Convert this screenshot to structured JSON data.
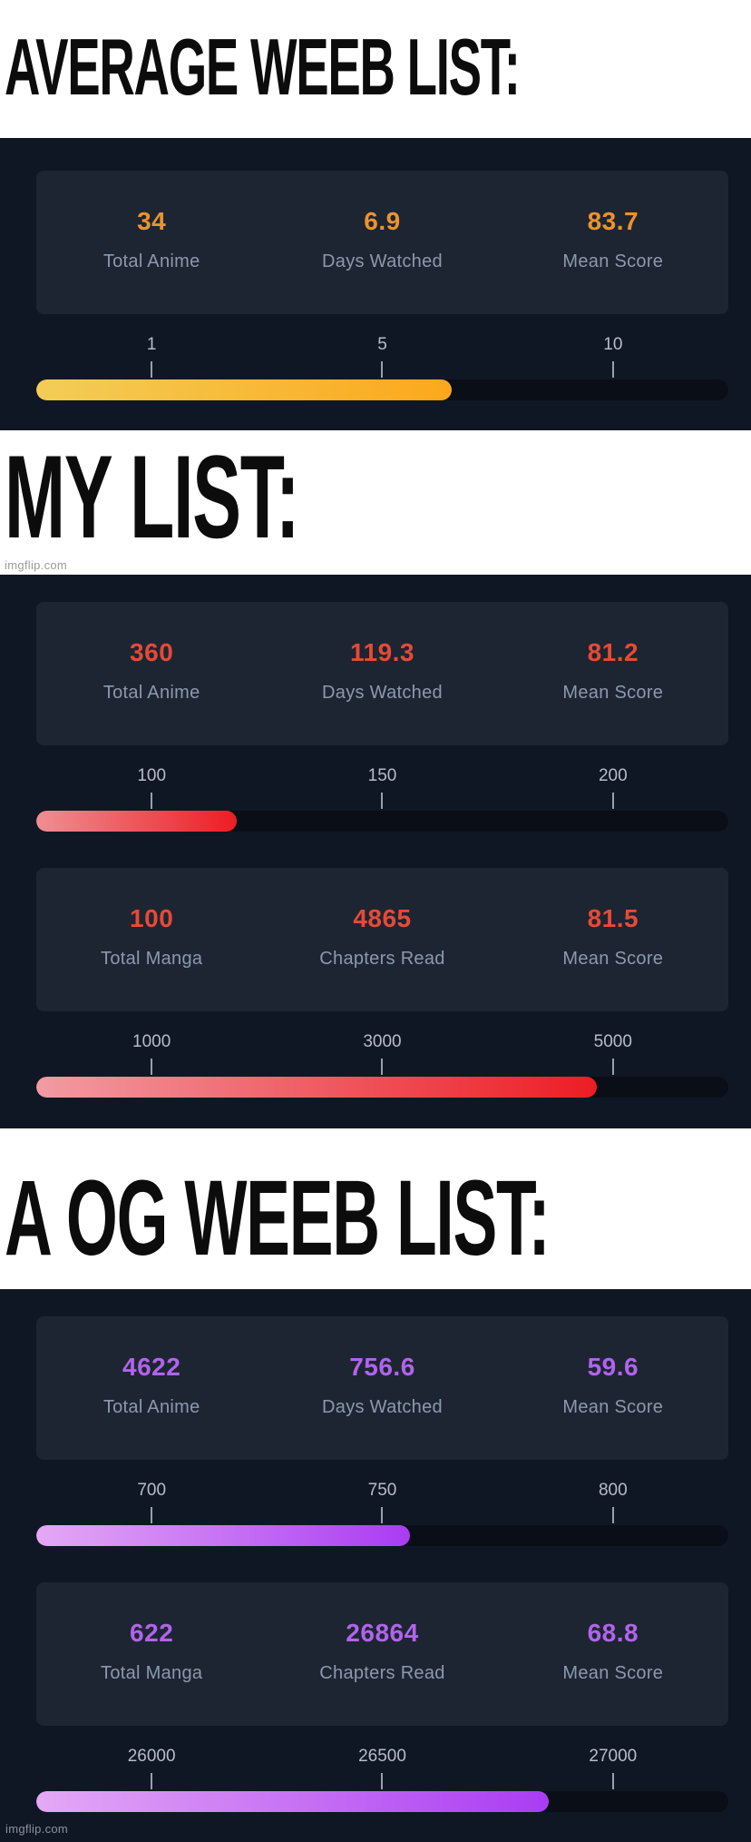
{
  "page": {
    "watermark": "imgflip.com"
  },
  "sections": [
    {
      "title": "AVERAGE WEEB LIST:",
      "accent": "#eb932f",
      "accent_style": "--accent:#eb932f",
      "cards": [
        {
          "stats": [
            {
              "value": "34",
              "label": "Total Anime"
            },
            {
              "value": "6.9",
              "label": "Days Watched"
            },
            {
              "value": "83.7",
              "label": "Mean Score"
            }
          ],
          "scale": {
            "ticks": [
              "1",
              "5",
              "10"
            ],
            "fill_percent": "60",
            "fill_colors": [
              "#f3cd57",
              "#fca81c"
            ],
            "fill_style": "width:60%;background:linear-gradient(90deg,#f3cd57,#fca81c)"
          }
        }
      ]
    },
    {
      "title": "MY LIST:",
      "watermark": "imgflip.com",
      "accent": "#e64a36",
      "accent_style": "--accent:#e64a36",
      "cards": [
        {
          "stats": [
            {
              "value": "360",
              "label": "Total Anime"
            },
            {
              "value": "119.3",
              "label": "Days Watched"
            },
            {
              "value": "81.2",
              "label": "Mean Score"
            }
          ],
          "scale": {
            "ticks": [
              "100",
              "150",
              "200"
            ],
            "fill_percent": "29",
            "fill_colors": [
              "#ef8f93",
              "#ed1c24"
            ],
            "fill_style": "width:29%;background:linear-gradient(90deg,#ef8f93,#ed1c24)"
          }
        },
        {
          "stats": [
            {
              "value": "100",
              "label": "Total Manga"
            },
            {
              "value": "4865",
              "label": "Chapters Read"
            },
            {
              "value": "81.5",
              "label": "Mean Score"
            }
          ],
          "scale": {
            "ticks": [
              "1000",
              "3000",
              "5000"
            ],
            "fill_percent": "81",
            "fill_colors": [
              "#f29ba3",
              "#ed1c24"
            ],
            "fill_style": "width:81%;background:linear-gradient(90deg,#f29ba3,#ed1c24)"
          }
        }
      ]
    },
    {
      "title": "A OG WEEB LIST:",
      "accent": "#b164ea",
      "accent_style": "--accent:#b164ea",
      "cards": [
        {
          "stats": [
            {
              "value": "4622",
              "label": "Total Anime"
            },
            {
              "value": "756.6",
              "label": "Days Watched"
            },
            {
              "value": "59.6",
              "label": "Mean Score"
            }
          ],
          "scale": {
            "ticks": [
              "700",
              "750",
              "800"
            ],
            "fill_percent": "54",
            "fill_colors": [
              "#e4a9f5",
              "#aa3cf3"
            ],
            "fill_style": "width:54%;background:linear-gradient(90deg,#e4a9f5,#aa3cf3)"
          }
        },
        {
          "stats": [
            {
              "value": "622",
              "label": "Total Manga"
            },
            {
              "value": "26864",
              "label": "Chapters Read"
            },
            {
              "value": "68.8",
              "label": "Mean Score"
            }
          ],
          "scale": {
            "ticks": [
              "26000",
              "26500",
              "27000"
            ],
            "fill_percent": "74",
            "fill_colors": [
              "#e4a9f5",
              "#aa3cf3"
            ],
            "fill_style": "width:74%;background:linear-gradient(90deg,#e4a9f5,#aa3cf3)"
          }
        }
      ]
    }
  ]
}
